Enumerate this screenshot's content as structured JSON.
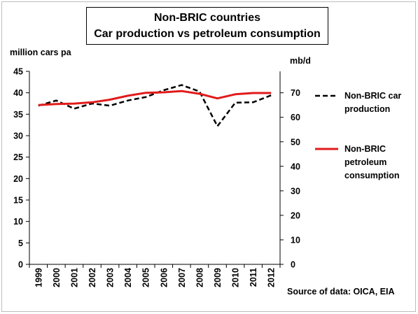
{
  "chart_data": {
    "type": "line",
    "title": [
      "Non-BRIC countries",
      "Car production vs petroleum consumption"
    ],
    "ylabel": "million cars pa",
    "y2label": "mb/d",
    "x": [
      "1999",
      "2000",
      "2001",
      "2002",
      "2003",
      "2004",
      "2005",
      "2006",
      "2007",
      "2008",
      "2009",
      "2010",
      "2011",
      "2012"
    ],
    "ylim": [
      0,
      45
    ],
    "yticks": [
      0,
      5,
      10,
      15,
      20,
      25,
      30,
      35,
      40,
      45
    ],
    "y2lim": [
      0,
      78.75
    ],
    "y2ticks": [
      0,
      10,
      20,
      30,
      40,
      50,
      60,
      70
    ],
    "series": [
      {
        "name": "Non-BRIC car production",
        "axis": "left",
        "style": "dashed",
        "color": "#000000",
        "values": [
          37.0,
          38.2,
          36.3,
          37.5,
          37.0,
          38.2,
          39.0,
          40.6,
          41.8,
          40.3,
          32.2,
          37.7,
          37.8,
          39.4
        ]
      },
      {
        "name": "Non-BRIC petroleum consumption",
        "axis": "right",
        "style": "solid",
        "color": "#e11b1b",
        "values": [
          65.0,
          65.4,
          65.6,
          66.1,
          67.2,
          68.8,
          70.0,
          70.2,
          70.7,
          69.6,
          67.7,
          69.4,
          69.9,
          69.9
        ]
      }
    ],
    "legend": [
      {
        "lines": [
          "Non-BRIC car",
          "production"
        ]
      },
      {
        "lines": [
          "Non-BRIC",
          "petroleum",
          "consumption"
        ]
      }
    ],
    "legend_position": "right",
    "grid": false
  },
  "source": "Source of data: OICA, EIA"
}
